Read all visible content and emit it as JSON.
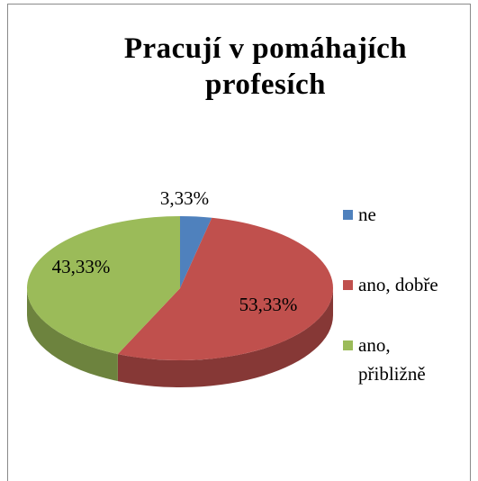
{
  "chart_data": {
    "type": "pie",
    "title": "Pracují v pomáhajích profesích",
    "categories": [
      "ne",
      "ano, dobře",
      "ano, přibližně"
    ],
    "values": [
      3.33,
      53.33,
      43.33
    ],
    "value_labels": [
      "3,33%",
      "53,33%",
      "43,33%"
    ],
    "colors": [
      "#4f81bd",
      "#c0504d",
      "#9bbb59"
    ],
    "legend": "right"
  }
}
